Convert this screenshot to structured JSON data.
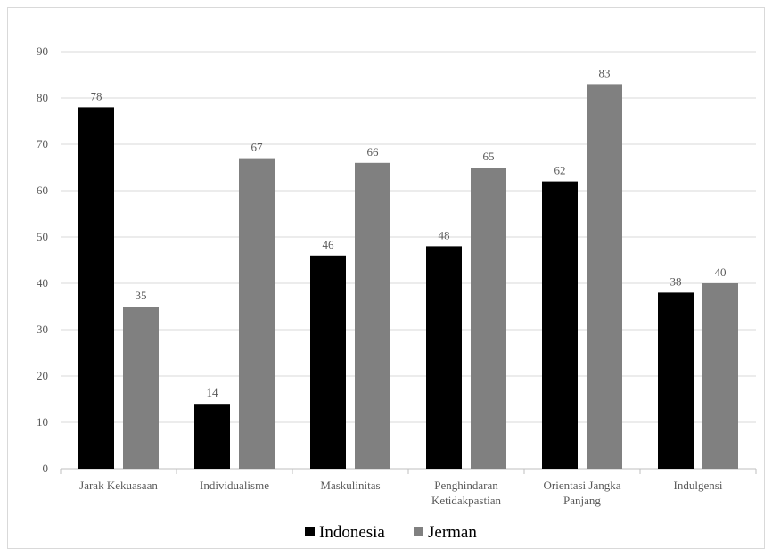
{
  "chart_data": {
    "type": "bar",
    "title": "",
    "xlabel": "",
    "ylabel": "",
    "ylim": [
      0,
      90
    ],
    "yticks": [
      0,
      10,
      20,
      30,
      40,
      50,
      60,
      70,
      80,
      90
    ],
    "grid": true,
    "legend_position": "bottom",
    "categories": [
      "Jarak Kekuasaan",
      "Individualisme",
      "Maskulinitas",
      "Penghindaran Ketidakpastian",
      "Orientasi Jangka Panjang",
      "Indulgensi"
    ],
    "category_lines": [
      [
        "Jarak Kekuasaan"
      ],
      [
        "Individualisme"
      ],
      [
        "Maskulinitas"
      ],
      [
        "Penghindaran",
        "Ketidakpastian"
      ],
      [
        "Orientasi Jangka",
        "Panjang"
      ],
      [
        "Indulgensi"
      ]
    ],
    "series": [
      {
        "name": "Indonesia",
        "color": "#000000",
        "values": [
          78,
          14,
          46,
          48,
          62,
          38
        ]
      },
      {
        "name": "Jerman",
        "color": "#808080",
        "values": [
          35,
          67,
          66,
          65,
          83,
          40
        ]
      }
    ]
  }
}
